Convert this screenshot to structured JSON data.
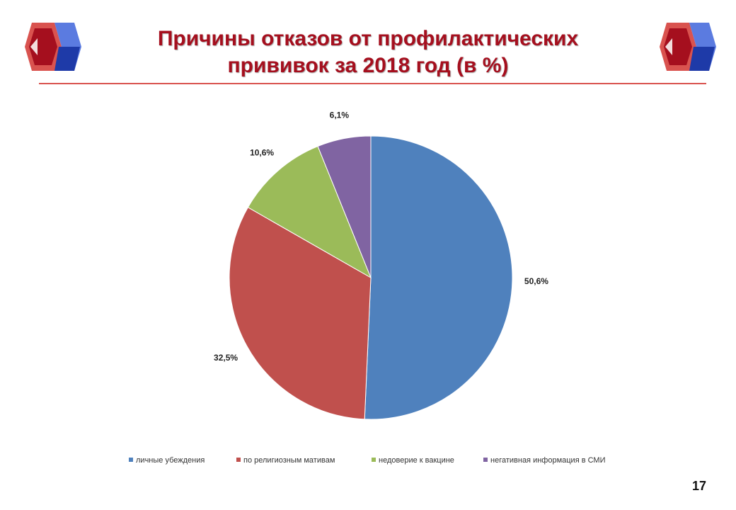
{
  "slide": {
    "title_line1": "Причины отказов от профилактических",
    "title_line2": "прививок за 2018 год (в %)",
    "page_number": "17",
    "accent_color": "#a50f1e",
    "logo_colors": {
      "red": "#c0292f",
      "red_dark": "#8a0e17",
      "blue": "#3b5ad6",
      "blue_dark": "#1e3aa8"
    }
  },
  "chart_data": {
    "type": "pie",
    "categories": [
      "личные убеждения",
      "по религиозным мативам",
      "недоверие к вакцине",
      "негативная информация в СМИ"
    ],
    "values": [
      50.6,
      32.5,
      10.6,
      6.1
    ],
    "labels": [
      "50,6%",
      "32,5%",
      "10,6%",
      "6,1%"
    ],
    "colors": [
      "#4f81bd",
      "#c0504d",
      "#9bbb59",
      "#8064a2"
    ],
    "legend_position": "bottom"
  }
}
